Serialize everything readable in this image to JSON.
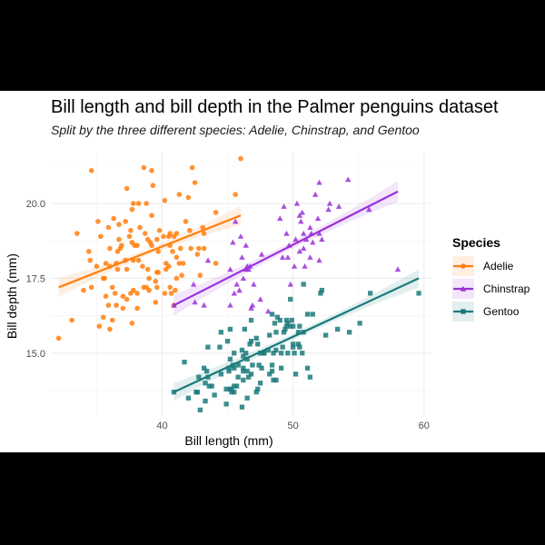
{
  "chart_data": {
    "type": "scatter",
    "title": "Bill length and bill depth in the Palmer penguins dataset",
    "subtitle": "Split by the three different species: Adelie, Chinstrap, and Gentoo",
    "xlabel": "Bill length (mm)",
    "ylabel": "Bill depth (mm)",
    "xlim": [
      31.5,
      60.5
    ],
    "ylim": [
      12.9,
      21.7
    ],
    "x_ticks": [
      40,
      50,
      60
    ],
    "y_ticks": [
      15.0,
      17.5,
      20.0
    ],
    "x_tick_labels": [
      "40",
      "50",
      "60"
    ],
    "y_tick_labels": [
      "15.0",
      "17.5",
      "20.0"
    ],
    "grid": true,
    "legend": {
      "title": "Species",
      "position": "right"
    },
    "series": [
      {
        "name": "Adelie",
        "color": "#ff7f0e",
        "marker": "circle",
        "fit": {
          "x": [
            32.1,
            46.0
          ],
          "y": [
            17.2,
            19.6
          ]
        },
        "band_halfwidth": 0.32,
        "points": [
          [
            32.1,
            15.5
          ],
          [
            33.1,
            16.1
          ],
          [
            33.5,
            19.0
          ],
          [
            34.0,
            17.1
          ],
          [
            34.4,
            18.4
          ],
          [
            34.5,
            18.1
          ],
          [
            34.6,
            21.1
          ],
          [
            34.6,
            17.2
          ],
          [
            35.0,
            17.9
          ],
          [
            35.1,
            19.4
          ],
          [
            35.2,
            15.9
          ],
          [
            35.3,
            18.9
          ],
          [
            35.5,
            16.2
          ],
          [
            35.5,
            17.5
          ],
          [
            35.6,
            17.5
          ],
          [
            35.7,
            16.9
          ],
          [
            35.7,
            18.0
          ],
          [
            35.9,
            16.6
          ],
          [
            35.9,
            19.2
          ],
          [
            36.0,
            15.8
          ],
          [
            36.0,
            17.9
          ],
          [
            36.0,
            18.5
          ],
          [
            36.2,
            16.1
          ],
          [
            36.2,
            17.2
          ],
          [
            36.3,
            19.5
          ],
          [
            36.4,
            17.0
          ],
          [
            36.5,
            16.6
          ],
          [
            36.5,
            18.0
          ],
          [
            36.6,
            17.8
          ],
          [
            36.6,
            18.4
          ],
          [
            36.7,
            18.8
          ],
          [
            36.7,
            19.3
          ],
          [
            36.8,
            18.5
          ],
          [
            36.9,
            18.6
          ],
          [
            37.0,
            16.5
          ],
          [
            37.0,
            16.9
          ],
          [
            37.2,
            18.1
          ],
          [
            37.2,
            19.4
          ],
          [
            37.3,
            16.8
          ],
          [
            37.3,
            17.8
          ],
          [
            37.3,
            20.5
          ],
          [
            37.5,
            18.9
          ],
          [
            37.6,
            17.0
          ],
          [
            37.6,
            19.1
          ],
          [
            37.7,
            16.0
          ],
          [
            37.7,
            18.7
          ],
          [
            37.7,
            19.8
          ],
          [
            37.8,
            17.1
          ],
          [
            37.8,
            18.1
          ],
          [
            37.8,
            20.0
          ],
          [
            37.9,
            18.6
          ],
          [
            38.1,
            16.5
          ],
          [
            38.1,
            17.0
          ],
          [
            38.1,
            18.6
          ],
          [
            38.2,
            18.1
          ],
          [
            38.2,
            20.0
          ],
          [
            38.3,
            19.2
          ],
          [
            38.5,
            17.9
          ],
          [
            38.6,
            17.2
          ],
          [
            38.6,
            21.2
          ],
          [
            38.7,
            19.0
          ],
          [
            38.8,
            17.2
          ],
          [
            38.8,
            20.0
          ],
          [
            38.9,
            17.8
          ],
          [
            38.9,
            18.8
          ],
          [
            39.0,
            17.1
          ],
          [
            39.0,
            17.5
          ],
          [
            39.1,
            18.7
          ],
          [
            39.2,
            18.6
          ],
          [
            39.2,
            19.6
          ],
          [
            39.2,
            21.1
          ],
          [
            39.3,
            20.6
          ],
          [
            39.5,
            16.7
          ],
          [
            39.5,
            17.4
          ],
          [
            39.6,
            17.2
          ],
          [
            39.6,
            17.7
          ],
          [
            39.6,
            18.8
          ],
          [
            39.7,
            17.7
          ],
          [
            39.7,
            18.4
          ],
          [
            39.8,
            19.1
          ],
          [
            40.1,
            18.9
          ],
          [
            40.2,
            17.0
          ],
          [
            40.2,
            20.1
          ],
          [
            40.3,
            17.8
          ],
          [
            40.3,
            18.0
          ],
          [
            40.5,
            17.9
          ],
          [
            40.5,
            18.9
          ],
          [
            40.6,
            17.2
          ],
          [
            40.6,
            18.6
          ],
          [
            40.6,
            19.0
          ],
          [
            40.7,
            17.0
          ],
          [
            40.8,
            18.4
          ],
          [
            40.9,
            16.6
          ],
          [
            40.9,
            18.9
          ],
          [
            41.0,
            17.1
          ],
          [
            41.1,
            17.5
          ],
          [
            41.1,
            18.2
          ],
          [
            41.1,
            19.0
          ],
          [
            41.3,
            18.0
          ],
          [
            41.3,
            20.3
          ],
          [
            41.4,
            18.5
          ],
          [
            41.5,
            17.6
          ],
          [
            41.6,
            18.0
          ],
          [
            41.8,
            19.4
          ],
          [
            42.0,
            20.2
          ],
          [
            42.1,
            19.1
          ],
          [
            42.2,
            18.5
          ],
          [
            42.3,
            21.2
          ],
          [
            42.5,
            20.7
          ],
          [
            42.7,
            18.3
          ],
          [
            42.8,
            18.5
          ],
          [
            42.9,
            17.6
          ],
          [
            43.1,
            19.2
          ],
          [
            43.2,
            18.5
          ],
          [
            43.2,
            19.0
          ],
          [
            44.1,
            19.7
          ],
          [
            44.1,
            18.0
          ],
          [
            45.6,
            20.3
          ],
          [
            46.0,
            21.5
          ]
        ]
      },
      {
        "name": "Chinstrap",
        "color": "#9b30d9",
        "marker": "triangle",
        "fit": {
          "x": [
            40.9,
            58.0
          ],
          "y": [
            16.6,
            20.4
          ]
        },
        "band_halfwidth": 0.35,
        "points": [
          [
            40.9,
            16.6
          ],
          [
            42.4,
            17.3
          ],
          [
            42.5,
            16.7
          ],
          [
            43.2,
            16.6
          ],
          [
            43.5,
            18.1
          ],
          [
            45.2,
            16.6
          ],
          [
            45.2,
            17.8
          ],
          [
            45.4,
            18.7
          ],
          [
            45.5,
            17.0
          ],
          [
            45.6,
            19.4
          ],
          [
            45.7,
            17.3
          ],
          [
            45.9,
            17.1
          ],
          [
            46.0,
            18.9
          ],
          [
            46.1,
            18.2
          ],
          [
            46.2,
            17.5
          ],
          [
            46.4,
            17.8
          ],
          [
            46.4,
            18.6
          ],
          [
            46.5,
            17.9
          ],
          [
            46.6,
            17.8
          ],
          [
            46.7,
            17.9
          ],
          [
            46.8,
            16.5
          ],
          [
            46.9,
            16.6
          ],
          [
            47.0,
            17.3
          ],
          [
            47.5,
            16.8
          ],
          [
            47.6,
            18.3
          ],
          [
            48.1,
            16.4
          ],
          [
            49.0,
            19.5
          ],
          [
            49.2,
            18.2
          ],
          [
            49.3,
            19.9
          ],
          [
            49.5,
            19.0
          ],
          [
            49.6,
            18.2
          ],
          [
            49.7,
            18.6
          ],
          [
            49.8,
            17.3
          ],
          [
            50.1,
            17.9
          ],
          [
            50.2,
            18.8
          ],
          [
            50.3,
            20.0
          ],
          [
            50.5,
            18.4
          ],
          [
            50.5,
            19.6
          ],
          [
            50.6,
            19.4
          ],
          [
            50.7,
            19.7
          ],
          [
            50.8,
            18.5
          ],
          [
            50.8,
            19.0
          ],
          [
            50.9,
            17.9
          ],
          [
            51.0,
            18.8
          ],
          [
            51.3,
            18.2
          ],
          [
            51.3,
            19.2
          ],
          [
            51.4,
            19.0
          ],
          [
            51.5,
            18.7
          ],
          [
            51.7,
            20.3
          ],
          [
            51.9,
            19.5
          ],
          [
            52.0,
            18.1
          ],
          [
            52.0,
            19.0
          ],
          [
            52.0,
            20.7
          ],
          [
            52.2,
            18.8
          ],
          [
            52.7,
            19.8
          ],
          [
            52.8,
            20.0
          ],
          [
            53.5,
            19.9
          ],
          [
            54.2,
            20.8
          ],
          [
            55.8,
            19.8
          ],
          [
            58.0,
            17.8
          ]
        ]
      },
      {
        "name": "Gentoo",
        "color": "#1b7a7a",
        "marker": "square",
        "fit": {
          "x": [
            40.9,
            59.6
          ],
          "y": [
            13.7,
            17.5
          ]
        },
        "band_halfwidth": 0.3,
        "points": [
          [
            40.9,
            13.7
          ],
          [
            41.7,
            14.7
          ],
          [
            42.0,
            13.5
          ],
          [
            42.6,
            13.7
          ],
          [
            42.7,
            13.7
          ],
          [
            42.8,
            14.2
          ],
          [
            42.9,
            13.1
          ],
          [
            43.2,
            14.5
          ],
          [
            43.3,
            13.4
          ],
          [
            43.3,
            14.0
          ],
          [
            43.4,
            14.4
          ],
          [
            43.5,
            14.2
          ],
          [
            43.5,
            15.2
          ],
          [
            43.6,
            13.9
          ],
          [
            43.8,
            13.9
          ],
          [
            44.0,
            13.6
          ],
          [
            44.4,
            15.2
          ],
          [
            44.5,
            14.3
          ],
          [
            44.5,
            15.7
          ],
          [
            44.9,
            13.3
          ],
          [
            44.9,
            13.8
          ],
          [
            45.0,
            15.4
          ],
          [
            45.1,
            14.4
          ],
          [
            45.1,
            14.5
          ],
          [
            45.2,
            13.8
          ],
          [
            45.2,
            14.8
          ],
          [
            45.2,
            15.8
          ],
          [
            45.3,
            13.7
          ],
          [
            45.3,
            13.8
          ],
          [
            45.4,
            14.6
          ],
          [
            45.5,
            13.7
          ],
          [
            45.5,
            13.9
          ],
          [
            45.5,
            14.5
          ],
          [
            45.5,
            15.0
          ],
          [
            45.7,
            13.9
          ],
          [
            45.8,
            14.2
          ],
          [
            45.8,
            14.6
          ],
          [
            46.1,
            13.2
          ],
          [
            46.1,
            15.1
          ],
          [
            46.2,
            14.1
          ],
          [
            46.2,
            14.4
          ],
          [
            46.2,
            14.5
          ],
          [
            46.2,
            14.9
          ],
          [
            46.3,
            15.8
          ],
          [
            46.4,
            15.0
          ],
          [
            46.5,
            13.5
          ],
          [
            46.5,
            14.4
          ],
          [
            46.5,
            14.8
          ],
          [
            46.6,
            14.2
          ],
          [
            46.7,
            15.3
          ],
          [
            46.8,
            14.3
          ],
          [
            46.8,
            15.4
          ],
          [
            46.8,
            16.1
          ],
          [
            46.9,
            14.6
          ],
          [
            47.2,
            13.7
          ],
          [
            47.2,
            15.5
          ],
          [
            47.3,
            13.8
          ],
          [
            47.3,
            15.3
          ],
          [
            47.4,
            14.6
          ],
          [
            47.5,
            14.0
          ],
          [
            47.5,
            15.0
          ],
          [
            47.6,
            14.5
          ],
          [
            47.7,
            15.0
          ],
          [
            47.8,
            15.0
          ],
          [
            48.1,
            15.1
          ],
          [
            48.2,
            14.3
          ],
          [
            48.2,
            15.6
          ],
          [
            48.4,
            14.4
          ],
          [
            48.4,
            14.6
          ],
          [
            48.4,
            16.3
          ],
          [
            48.5,
            14.1
          ],
          [
            48.5,
            15.0
          ],
          [
            48.6,
            16.0
          ],
          [
            48.7,
            14.1
          ],
          [
            48.7,
            15.1
          ],
          [
            48.7,
            15.7
          ],
          [
            48.8,
            16.2
          ],
          [
            49.0,
            16.1
          ],
          [
            49.1,
            14.5
          ],
          [
            49.1,
            15.0
          ],
          [
            49.2,
            15.2
          ],
          [
            49.3,
            15.7
          ],
          [
            49.4,
            15.8
          ],
          [
            49.5,
            15.9
          ],
          [
            49.5,
            16.1
          ],
          [
            49.6,
            15.0
          ],
          [
            49.6,
            16.0
          ],
          [
            49.8,
            15.9
          ],
          [
            49.8,
            16.8
          ],
          [
            49.9,
            16.1
          ],
          [
            50.0,
            15.2
          ],
          [
            50.0,
            15.3
          ],
          [
            50.0,
            15.9
          ],
          [
            50.1,
            15.0
          ],
          [
            50.2,
            14.3
          ],
          [
            50.4,
            15.3
          ],
          [
            50.4,
            15.7
          ],
          [
            50.5,
            15.2
          ],
          [
            50.5,
            15.9
          ],
          [
            50.7,
            15.0
          ],
          [
            50.8,
            15.7
          ],
          [
            50.8,
            17.3
          ],
          [
            51.1,
            14.5
          ],
          [
            51.1,
            16.3
          ],
          [
            51.3,
            14.2
          ],
          [
            51.5,
            16.3
          ],
          [
            52.1,
            17.0
          ],
          [
            52.2,
            17.1
          ],
          [
            52.5,
            15.6
          ],
          [
            53.4,
            15.8
          ],
          [
            54.3,
            15.7
          ],
          [
            55.1,
            16.0
          ],
          [
            55.9,
            17.0
          ],
          [
            59.6,
            17.0
          ]
        ]
      }
    ]
  }
}
